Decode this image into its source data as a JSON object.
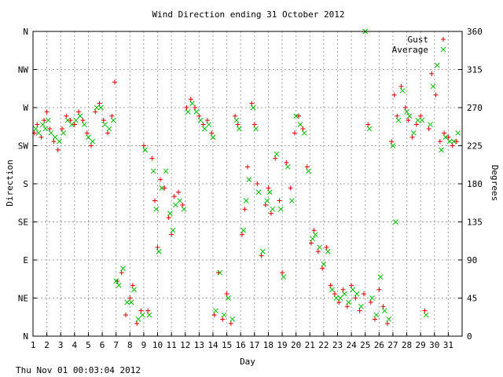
{
  "chart_data": {
    "type": "scatter",
    "title": "Wind Direction ending 31 October 2012",
    "xlabel": "Day",
    "ylabel": "Direction",
    "y2label": "Degrees",
    "footer": "Thu Nov 01 00:03:04 2012",
    "xlim": [
      1,
      32
    ],
    "ylim": [
      0,
      360
    ],
    "x_ticks": [
      1,
      2,
      3,
      4,
      5,
      6,
      7,
      8,
      9,
      10,
      11,
      12,
      13,
      14,
      15,
      16,
      17,
      18,
      19,
      20,
      21,
      22,
      23,
      24,
      25,
      26,
      27,
      28,
      29,
      30,
      31
    ],
    "y_ticks_left": [
      {
        "value": 0,
        "label": "N"
      },
      {
        "value": 45,
        "label": "NE"
      },
      {
        "value": 90,
        "label": "E"
      },
      {
        "value": 135,
        "label": "SE"
      },
      {
        "value": 180,
        "label": "S"
      },
      {
        "value": 225,
        "label": "SW"
      },
      {
        "value": 270,
        "label": "W"
      },
      {
        "value": 315,
        "label": "NW"
      },
      {
        "value": 360,
        "label": "N"
      }
    ],
    "y_ticks_right": [
      0,
      45,
      90,
      135,
      180,
      225,
      270,
      315,
      360
    ],
    "grid": true,
    "legend_position": "top-right",
    "series": [
      {
        "name": "Gust",
        "marker": "+",
        "color": "#e00000",
        "points": [
          [
            1.1,
            240
          ],
          [
            1.3,
            250
          ],
          [
            1.6,
            235
          ],
          [
            1.8,
            255
          ],
          [
            2.0,
            265
          ],
          [
            2.2,
            245
          ],
          [
            2.5,
            230
          ],
          [
            2.8,
            220
          ],
          [
            3.1,
            245
          ],
          [
            3.4,
            260
          ],
          [
            3.7,
            255
          ],
          [
            4.0,
            250
          ],
          [
            4.3,
            265
          ],
          [
            4.6,
            255
          ],
          [
            4.9,
            240
          ],
          [
            5.2,
            225
          ],
          [
            5.5,
            265
          ],
          [
            5.8,
            275
          ],
          [
            6.1,
            255
          ],
          [
            6.4,
            240
          ],
          [
            6.7,
            260
          ],
          [
            6.9,
            300
          ],
          [
            7.1,
            65
          ],
          [
            7.4,
            75
          ],
          [
            7.7,
            25
          ],
          [
            8.0,
            45
          ],
          [
            8.2,
            60
          ],
          [
            8.5,
            15
          ],
          [
            8.8,
            30
          ],
          [
            9.0,
            225
          ],
          [
            9.3,
            30
          ],
          [
            9.6,
            210
          ],
          [
            9.8,
            160
          ],
          [
            10.0,
            105
          ],
          [
            10.2,
            185
          ],
          [
            10.5,
            175
          ],
          [
            10.8,
            140
          ],
          [
            11.0,
            120
          ],
          [
            11.2,
            165
          ],
          [
            11.5,
            170
          ],
          [
            11.8,
            155
          ],
          [
            12.1,
            270
          ],
          [
            12.4,
            280
          ],
          [
            12.7,
            270
          ],
          [
            13.0,
            260
          ],
          [
            13.3,
            250
          ],
          [
            13.6,
            255
          ],
          [
            13.9,
            240
          ],
          [
            14.1,
            25
          ],
          [
            14.4,
            75
          ],
          [
            14.7,
            20
          ],
          [
            15.0,
            50
          ],
          [
            15.3,
            15
          ],
          [
            15.6,
            260
          ],
          [
            15.8,
            250
          ],
          [
            16.1,
            120
          ],
          [
            16.3,
            150
          ],
          [
            16.5,
            200
          ],
          [
            16.8,
            275
          ],
          [
            17.0,
            250
          ],
          [
            17.2,
            180
          ],
          [
            17.5,
            95
          ],
          [
            17.8,
            155
          ],
          [
            18.0,
            175
          ],
          [
            18.2,
            145
          ],
          [
            18.5,
            210
          ],
          [
            18.8,
            160
          ],
          [
            19.0,
            75
          ],
          [
            19.3,
            205
          ],
          [
            19.6,
            175
          ],
          [
            19.9,
            240
          ],
          [
            20.2,
            260
          ],
          [
            20.5,
            245
          ],
          [
            20.8,
            200
          ],
          [
            21.1,
            110
          ],
          [
            21.3,
            125
          ],
          [
            21.6,
            100
          ],
          [
            21.9,
            80
          ],
          [
            22.2,
            105
          ],
          [
            22.5,
            60
          ],
          [
            22.8,
            50
          ],
          [
            23.1,
            40
          ],
          [
            23.4,
            55
          ],
          [
            23.7,
            35
          ],
          [
            24.0,
            60
          ],
          [
            24.3,
            45
          ],
          [
            24.6,
            30
          ],
          [
            24.9,
            50
          ],
          [
            25.2,
            250
          ],
          [
            25.4,
            40
          ],
          [
            25.7,
            20
          ],
          [
            26.0,
            55
          ],
          [
            26.3,
            35
          ],
          [
            26.6,
            15
          ],
          [
            26.9,
            230
          ],
          [
            27.1,
            285
          ],
          [
            27.3,
            260
          ],
          [
            27.6,
            295
          ],
          [
            27.9,
            270
          ],
          [
            28.1,
            255
          ],
          [
            28.4,
            235
          ],
          [
            28.7,
            250
          ],
          [
            29.0,
            260
          ],
          [
            29.3,
            30
          ],
          [
            29.6,
            245
          ],
          [
            29.8,
            310
          ],
          [
            30.1,
            285
          ],
          [
            30.4,
            230
          ],
          [
            30.7,
            240
          ],
          [
            31.0,
            235
          ],
          [
            31.3,
            225
          ],
          [
            31.6,
            230
          ]
        ]
      },
      {
        "name": "Average",
        "marker": "x",
        "color": "#00bb00",
        "points": [
          [
            1.2,
            245
          ],
          [
            1.4,
            240
          ],
          [
            1.7,
            250
          ],
          [
            1.9,
            245
          ],
          [
            2.1,
            255
          ],
          [
            2.3,
            240
          ],
          [
            2.6,
            235
          ],
          [
            2.9,
            230
          ],
          [
            3.2,
            240
          ],
          [
            3.5,
            255
          ],
          [
            3.8,
            250
          ],
          [
            4.1,
            255
          ],
          [
            4.4,
            260
          ],
          [
            4.7,
            250
          ],
          [
            5.0,
            235
          ],
          [
            5.3,
            230
          ],
          [
            5.6,
            270
          ],
          [
            5.9,
            270
          ],
          [
            6.2,
            250
          ],
          [
            6.5,
            245
          ],
          [
            6.8,
            255
          ],
          [
            7.0,
            65
          ],
          [
            7.2,
            60
          ],
          [
            7.5,
            80
          ],
          [
            7.8,
            40
          ],
          [
            8.1,
            40
          ],
          [
            8.3,
            55
          ],
          [
            8.6,
            20
          ],
          [
            8.9,
            25
          ],
          [
            9.1,
            220
          ],
          [
            9.4,
            25
          ],
          [
            9.7,
            195
          ],
          [
            9.9,
            150
          ],
          [
            10.1,
            100
          ],
          [
            10.3,
            175
          ],
          [
            10.6,
            195
          ],
          [
            10.9,
            145
          ],
          [
            11.1,
            125
          ],
          [
            11.3,
            155
          ],
          [
            11.6,
            160
          ],
          [
            11.9,
            150
          ],
          [
            12.2,
            265
          ],
          [
            12.5,
            275
          ],
          [
            12.8,
            265
          ],
          [
            13.1,
            255
          ],
          [
            13.4,
            245
          ],
          [
            13.7,
            250
          ],
          [
            14.0,
            235
          ],
          [
            14.2,
            30
          ],
          [
            14.5,
            75
          ],
          [
            14.8,
            25
          ],
          [
            15.1,
            45
          ],
          [
            15.4,
            20
          ],
          [
            15.7,
            255
          ],
          [
            15.9,
            245
          ],
          [
            16.2,
            125
          ],
          [
            16.4,
            160
          ],
          [
            16.6,
            185
          ],
          [
            16.9,
            270
          ],
          [
            17.1,
            245
          ],
          [
            17.3,
            170
          ],
          [
            17.6,
            100
          ],
          [
            17.9,
            160
          ],
          [
            18.1,
            170
          ],
          [
            18.3,
            150
          ],
          [
            18.6,
            215
          ],
          [
            18.9,
            150
          ],
          [
            19.1,
            70
          ],
          [
            19.4,
            200
          ],
          [
            19.7,
            160
          ],
          [
            20.0,
            260
          ],
          [
            20.3,
            250
          ],
          [
            20.6,
            240
          ],
          [
            20.9,
            195
          ],
          [
            21.2,
            115
          ],
          [
            21.4,
            120
          ],
          [
            21.7,
            105
          ],
          [
            22.0,
            85
          ],
          [
            22.3,
            100
          ],
          [
            22.6,
            55
          ],
          [
            22.9,
            45
          ],
          [
            23.2,
            45
          ],
          [
            23.5,
            50
          ],
          [
            23.8,
            40
          ],
          [
            24.1,
            55
          ],
          [
            24.4,
            50
          ],
          [
            24.7,
            35
          ],
          [
            25.0,
            360
          ],
          [
            25.3,
            245
          ],
          [
            25.5,
            45
          ],
          [
            25.8,
            25
          ],
          [
            26.1,
            70
          ],
          [
            26.4,
            30
          ],
          [
            26.7,
            20
          ],
          [
            27.0,
            225
          ],
          [
            27.2,
            135
          ],
          [
            27.4,
            255
          ],
          [
            27.7,
            290
          ],
          [
            28.0,
            265
          ],
          [
            28.2,
            260
          ],
          [
            28.5,
            240
          ],
          [
            28.8,
            255
          ],
          [
            29.1,
            255
          ],
          [
            29.4,
            25
          ],
          [
            29.7,
            250
          ],
          [
            29.9,
            295
          ],
          [
            30.2,
            320
          ],
          [
            30.5,
            220
          ],
          [
            30.8,
            235
          ],
          [
            31.1,
            230
          ],
          [
            31.4,
            230
          ],
          [
            31.7,
            240
          ]
        ]
      }
    ]
  }
}
